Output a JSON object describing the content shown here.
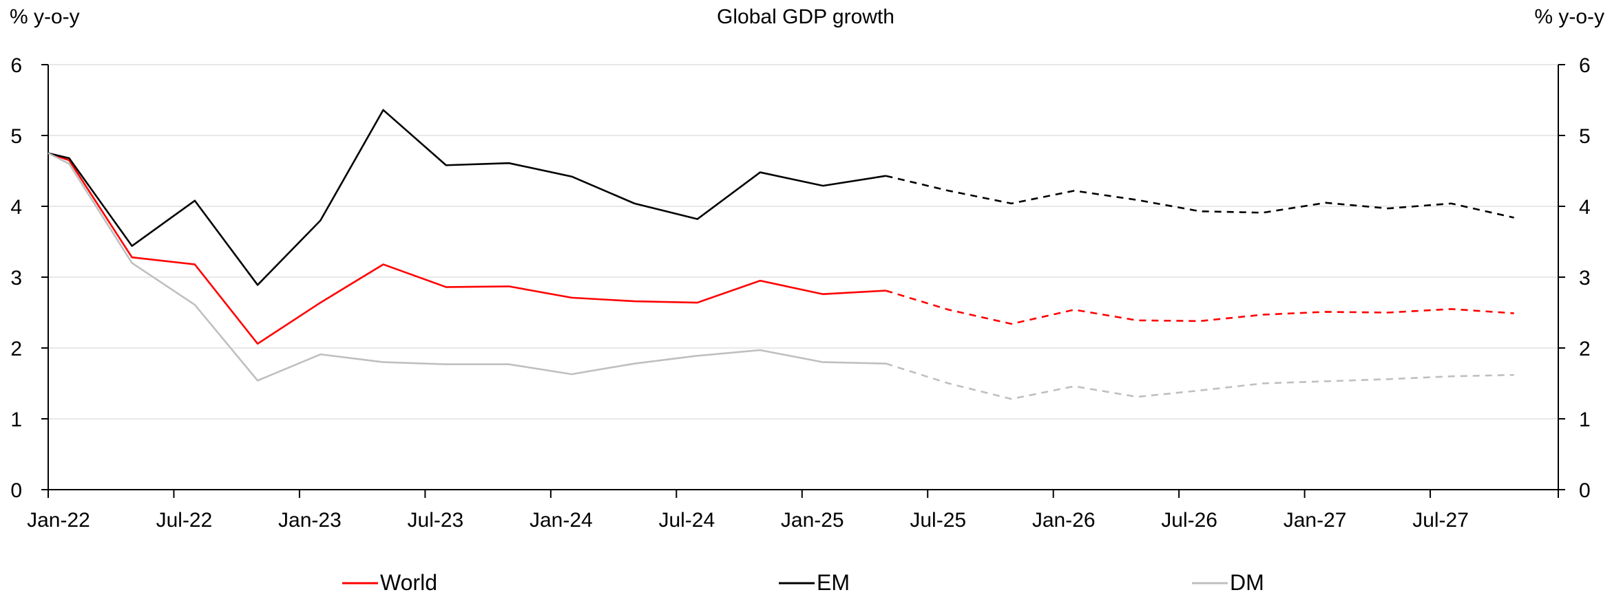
{
  "chart_data": {
    "type": "line",
    "title": "Global GDP growth",
    "ylabel_left": "% y-o-y",
    "ylabel_right": "% y-o-y",
    "ylim": [
      0,
      6
    ],
    "yticks": [
      0,
      1,
      2,
      3,
      4,
      5,
      6
    ],
    "x_tick_labels": [
      "Jan-22",
      "Jul-22",
      "Jan-23",
      "Jul-23",
      "Jan-24",
      "Jul-24",
      "Jan-25",
      "Jul-25",
      "Jan-26",
      "Jul-26",
      "Jan-27",
      "Jul-27"
    ],
    "x": [
      "Jan-22",
      "Feb-22",
      "May-22",
      "Aug-22",
      "Nov-22",
      "Feb-23",
      "May-23",
      "Aug-23",
      "Nov-23",
      "Feb-24",
      "May-24",
      "Aug-24",
      "Nov-24",
      "Feb-25",
      "May-25",
      "Aug-25",
      "Nov-25",
      "Feb-26",
      "May-26",
      "Aug-26",
      "Nov-26",
      "Feb-27",
      "May-27",
      "Aug-27",
      "Nov-27"
    ],
    "forecast_start": "May-25",
    "grid": true,
    "legend_position": "bottom",
    "series": [
      {
        "name": "World",
        "color": "#ff0000",
        "values": [
          4.75,
          4.65,
          3.28,
          3.18,
          2.06,
          2.64,
          3.18,
          2.86,
          2.87,
          2.71,
          2.66,
          2.64,
          2.95,
          2.76,
          2.81,
          2.54,
          2.34,
          2.54,
          2.39,
          2.38,
          2.47,
          2.51,
          2.5,
          2.55,
          2.49
        ]
      },
      {
        "name": "EM",
        "color": "#000000",
        "values": [
          4.75,
          4.68,
          3.44,
          4.08,
          2.89,
          3.8,
          5.36,
          4.58,
          4.61,
          4.42,
          4.04,
          3.82,
          4.48,
          4.29,
          4.43,
          4.22,
          4.04,
          4.22,
          4.09,
          3.93,
          3.91,
          4.05,
          3.97,
          4.04,
          3.84
        ]
      },
      {
        "name": "DM",
        "color": "#bfbfbf",
        "values": [
          4.75,
          4.6,
          3.2,
          2.61,
          1.54,
          1.91,
          1.8,
          1.77,
          1.77,
          1.63,
          1.78,
          1.89,
          1.97,
          1.8,
          1.78,
          1.5,
          1.28,
          1.46,
          1.31,
          1.4,
          1.5,
          1.53,
          1.56,
          1.6,
          1.62
        ]
      }
    ]
  }
}
